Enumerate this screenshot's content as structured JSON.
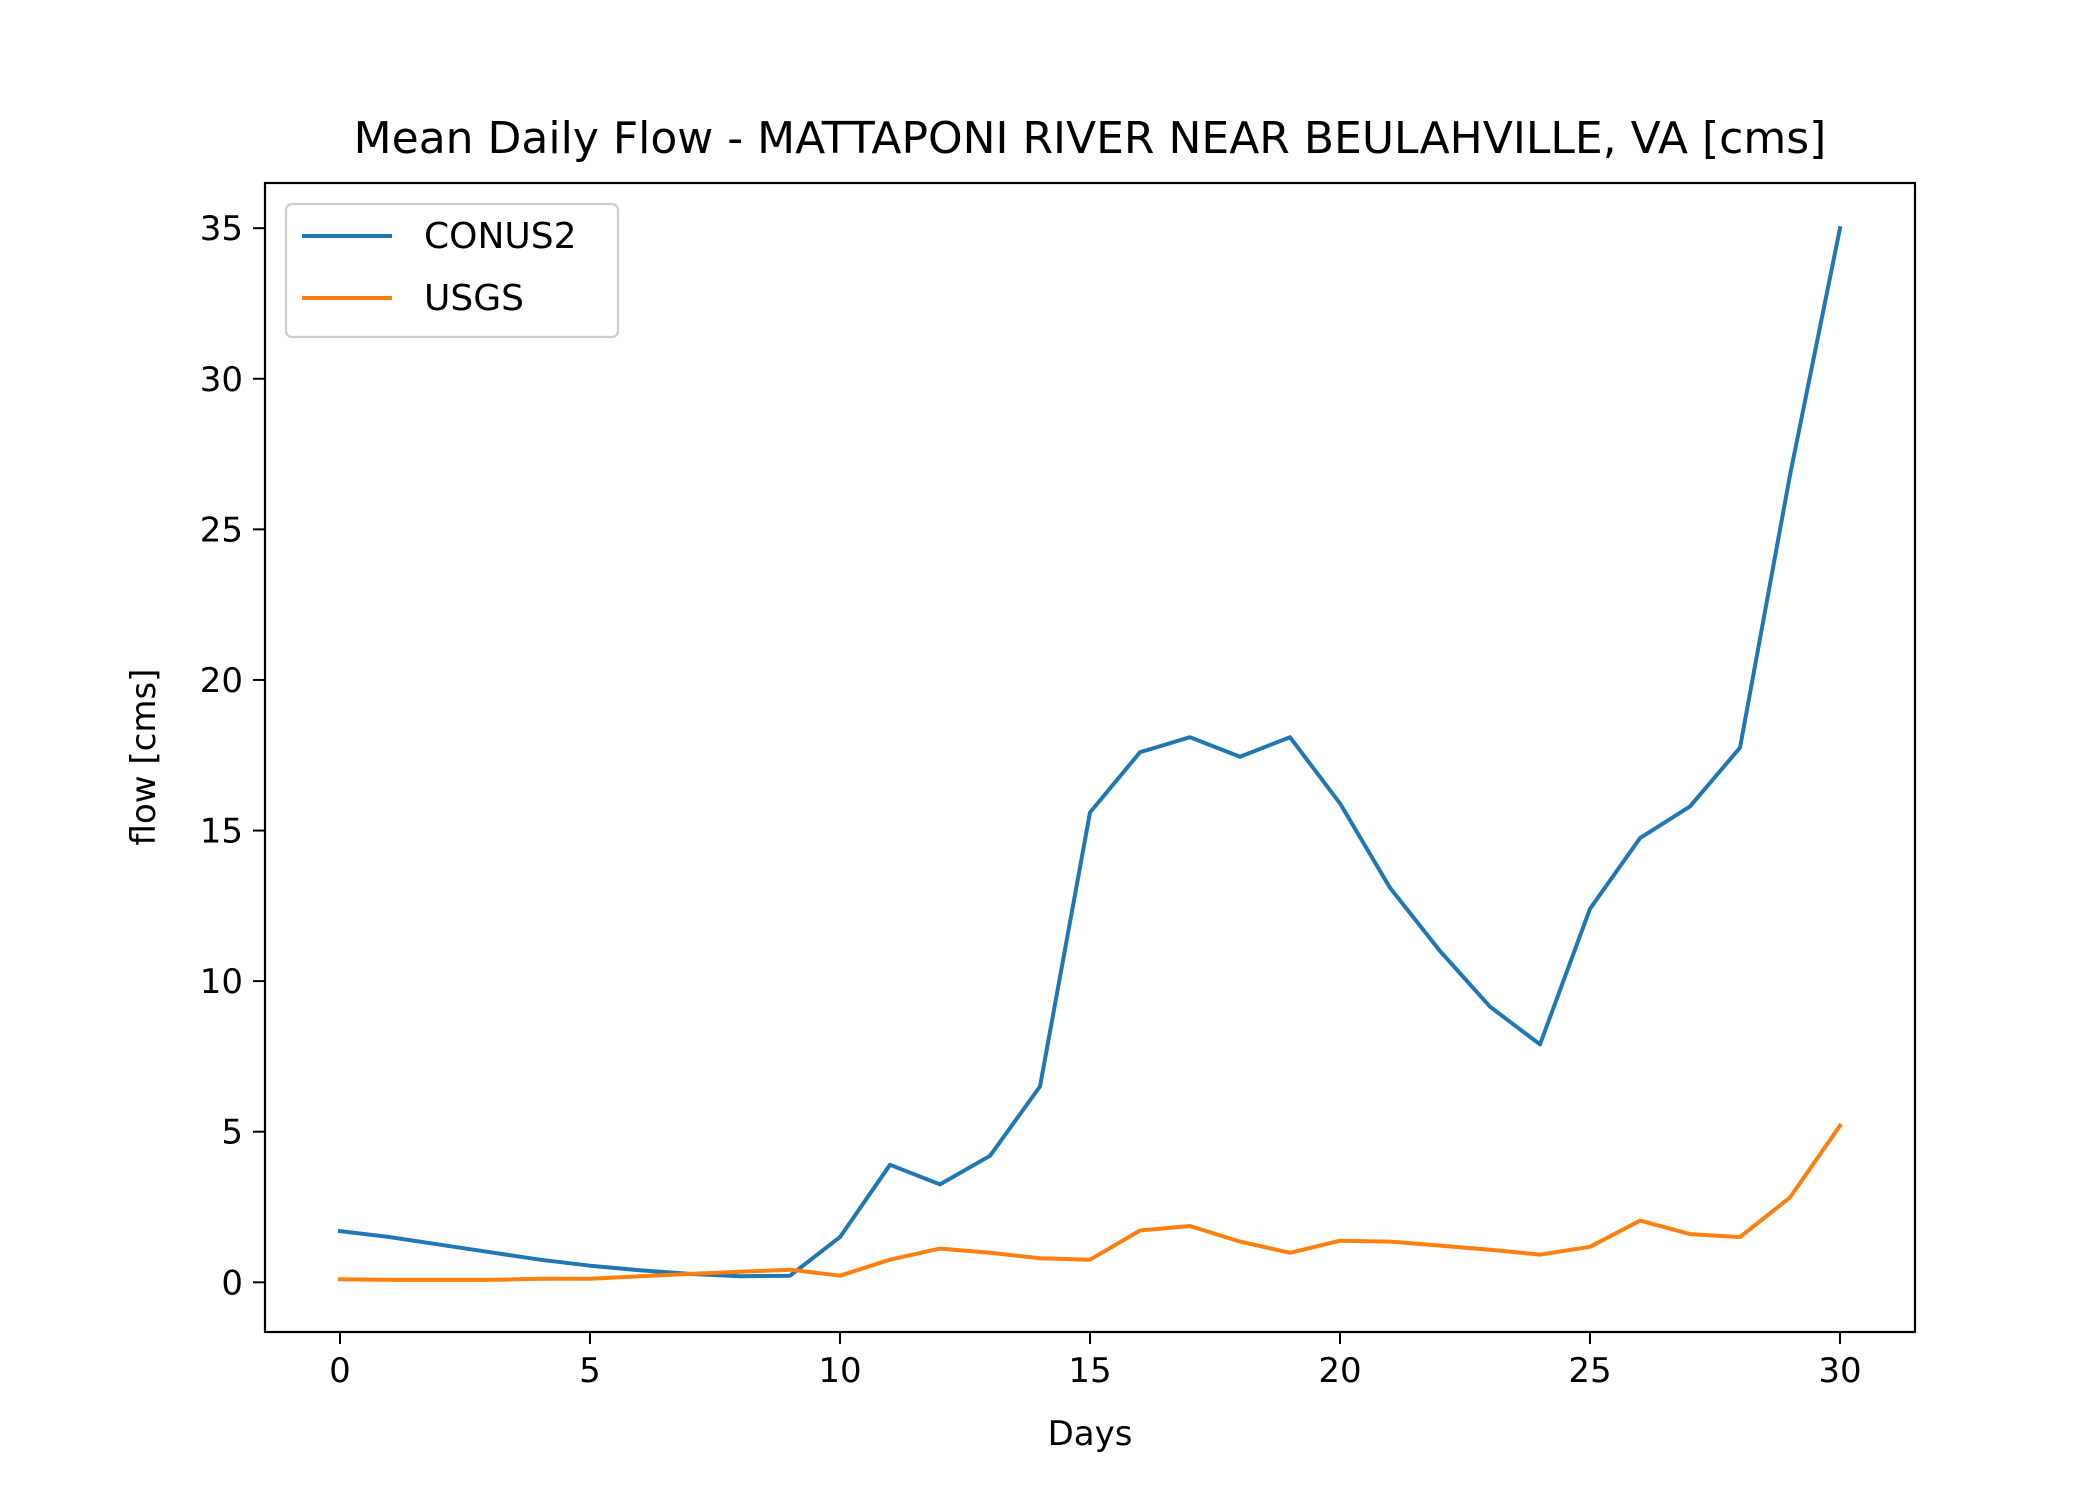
{
  "chart_data": {
    "type": "line",
    "title": "Mean Daily Flow - MATTAPONI RIVER NEAR BEULAHVILLE, VA [cms]",
    "xlabel": "Days",
    "ylabel": "flow [cms]",
    "xlim": [
      -1.5,
      31.5
    ],
    "ylim": [
      -1.65,
      36.5
    ],
    "xticks": [
      0,
      5,
      10,
      15,
      20,
      25,
      30
    ],
    "yticks": [
      0,
      5,
      10,
      15,
      20,
      25,
      30,
      35
    ],
    "grid": false,
    "legend_position": "top-left",
    "x": [
      0,
      1,
      2,
      3,
      4,
      5,
      6,
      7,
      8,
      9,
      10,
      11,
      12,
      13,
      14,
      15,
      16,
      17,
      18,
      19,
      20,
      21,
      22,
      23,
      24,
      25,
      26,
      27,
      28,
      29,
      30
    ],
    "series": [
      {
        "name": "CONUS2",
        "color": "#1f77b4",
        "values": [
          1.7,
          1.5,
          1.25,
          1.0,
          0.75,
          0.55,
          0.4,
          0.28,
          0.2,
          0.22,
          1.5,
          3.9,
          3.25,
          4.2,
          6.5,
          15.6,
          17.6,
          18.1,
          17.45,
          18.1,
          15.9,
          13.1,
          11.0,
          9.15,
          7.9,
          12.4,
          14.75,
          15.8,
          17.75,
          26.8,
          35.0
        ]
      },
      {
        "name": "USGS",
        "color": "#ff7f0e",
        "values": [
          0.1,
          0.08,
          0.08,
          0.08,
          0.12,
          0.12,
          0.2,
          0.28,
          0.35,
          0.42,
          0.22,
          0.75,
          1.12,
          0.98,
          0.8,
          0.75,
          1.72,
          1.87,
          1.35,
          0.98,
          1.38,
          1.35,
          1.22,
          1.08,
          0.92,
          1.18,
          2.05,
          1.6,
          1.5,
          2.82,
          5.2
        ]
      }
    ]
  }
}
